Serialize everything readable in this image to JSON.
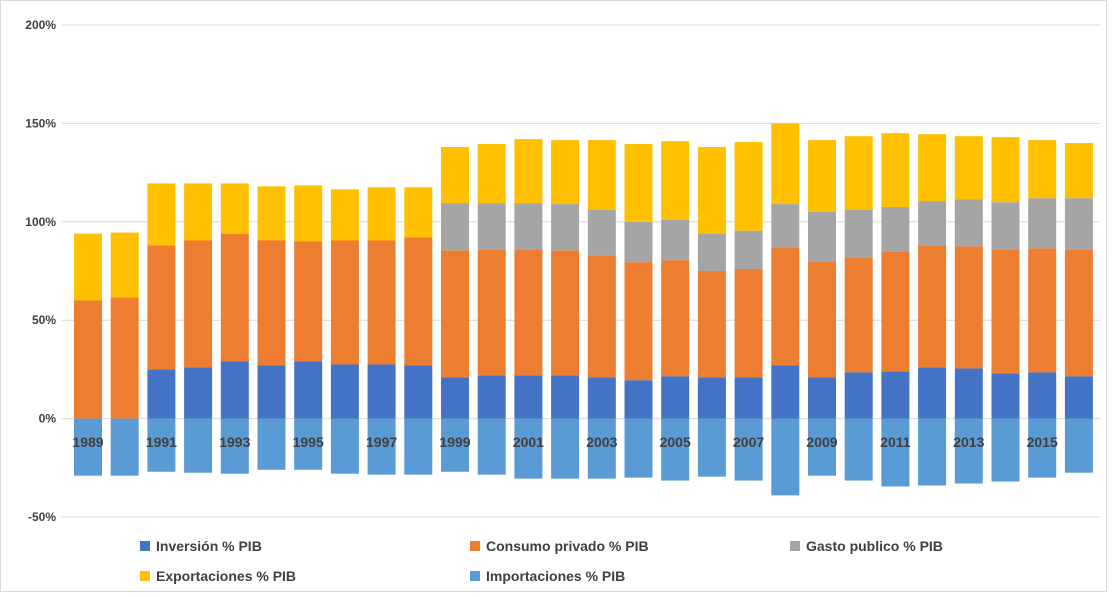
{
  "chart_data": {
    "type": "bar",
    "stacked": true,
    "title": "",
    "xlabel": "",
    "ylabel": "",
    "ylim": [
      -50,
      200
    ],
    "y_ticks": [
      -50,
      0,
      50,
      100,
      150,
      200
    ],
    "y_tick_labels": [
      "-50%",
      "0%",
      "50%",
      "100%",
      "150%",
      "200%"
    ],
    "grid": "horizontal",
    "legend_position": "bottom",
    "categories": [
      "1989",
      "1990",
      "1991",
      "1992",
      "1993",
      "1994",
      "1995",
      "1996",
      "1997",
      "1998",
      "1999",
      "2000",
      "2001",
      "2002",
      "2003",
      "2004",
      "2005",
      "2006",
      "2007",
      "2008",
      "2009",
      "2010",
      "2011",
      "2012",
      "2013",
      "2014",
      "2015",
      "2016"
    ],
    "x_tick_labels": [
      "1989",
      "",
      "1991",
      "",
      "1993",
      "",
      "1995",
      "",
      "1997",
      "",
      "1999",
      "",
      "2001",
      "",
      "2003",
      "",
      "2005",
      "",
      "2007",
      "",
      "2009",
      "",
      "2011",
      "",
      "2013",
      "",
      "2015",
      ""
    ],
    "series": [
      {
        "name": "Inversión % PIB",
        "color": "#4472C4",
        "values": [
          0,
          0,
          25,
          26,
          29,
          27,
          29,
          27.5,
          27.5,
          27,
          21,
          22,
          22,
          22,
          21,
          19.5,
          21.5,
          21,
          21,
          27,
          21,
          23.5,
          24,
          26,
          25.5,
          23,
          23.5,
          21.5
        ]
      },
      {
        "name": "Consumo privado % PIB",
        "color": "#ED7D31",
        "values": [
          60,
          61.5,
          63,
          64.5,
          65,
          63.5,
          61,
          63,
          63,
          65,
          64.5,
          64,
          64,
          63.5,
          62,
          60,
          59,
          54,
          55,
          60,
          59,
          58.5,
          61,
          62,
          62,
          63,
          63,
          64.5
        ]
      },
      {
        "name": "Gasto publico % PIB",
        "color": "#A5A5A5",
        "values": [
          0,
          0,
          0,
          0,
          0,
          0,
          0,
          0,
          0,
          0,
          24,
          23.5,
          23.5,
          23.5,
          23,
          20.5,
          20.5,
          19,
          19.5,
          22,
          25,
          24,
          22.5,
          22.5,
          24,
          24,
          25.5,
          26
        ]
      },
      {
        "name": "Exportaciones  % PIB",
        "color": "#FFC000",
        "values": [
          34,
          33,
          31.5,
          29,
          25.5,
          27.5,
          28.5,
          26,
          27,
          25.5,
          28.5,
          30,
          32.5,
          32.5,
          35.5,
          39.5,
          40,
          44,
          45,
          41,
          36.5,
          37.5,
          37.5,
          34,
          32,
          33,
          29.5,
          28
        ]
      },
      {
        "name": "Importaciones  % PIB",
        "color": "#5B9BD5",
        "values": [
          -29,
          -29,
          -27,
          -27.5,
          -28,
          -26,
          -26,
          -28,
          -28.5,
          -28.5,
          -27,
          -28.5,
          -30.5,
          -30.5,
          -30.5,
          -30,
          -31.5,
          -29.5,
          -31.5,
          -39,
          -29,
          -31.5,
          -34.5,
          -34,
          -33,
          -32,
          -30,
          -27.5
        ]
      }
    ]
  }
}
